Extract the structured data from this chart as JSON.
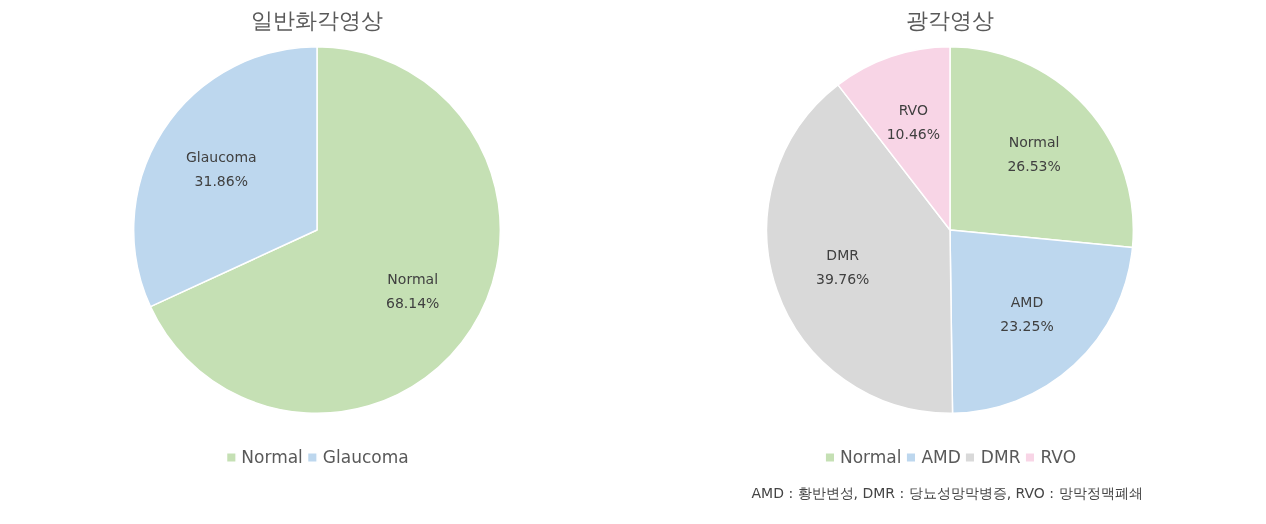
{
  "chart_data": [
    {
      "type": "pie",
      "title": "일반화각영상",
      "categories": [
        "Normal",
        "Glaucoma"
      ],
      "values": [
        68.14,
        31.86
      ],
      "value_labels": [
        "68.14%",
        "31.86%"
      ],
      "colors": [
        "#c5e0b4",
        "#bdd7ee"
      ],
      "data_labels": true,
      "legend": "bottom"
    },
    {
      "type": "pie",
      "title": "광각영상",
      "categories": [
        "Normal",
        "AMD",
        "DMR",
        "RVO"
      ],
      "values": [
        26.53,
        23.25,
        39.76,
        10.46
      ],
      "value_labels": [
        "26.53%",
        "23.25%",
        "39.76%",
        "10.46%"
      ],
      "colors": [
        "#c5e0b4",
        "#bdd7ee",
        "#d9d9d9",
        "#f8d5e6"
      ],
      "data_labels": true,
      "legend": "bottom",
      "annotations": [
        "AMD : 황반변성, DMR : 당뇨성망막병증, RVO : 망막정맥폐쇄"
      ]
    }
  ]
}
